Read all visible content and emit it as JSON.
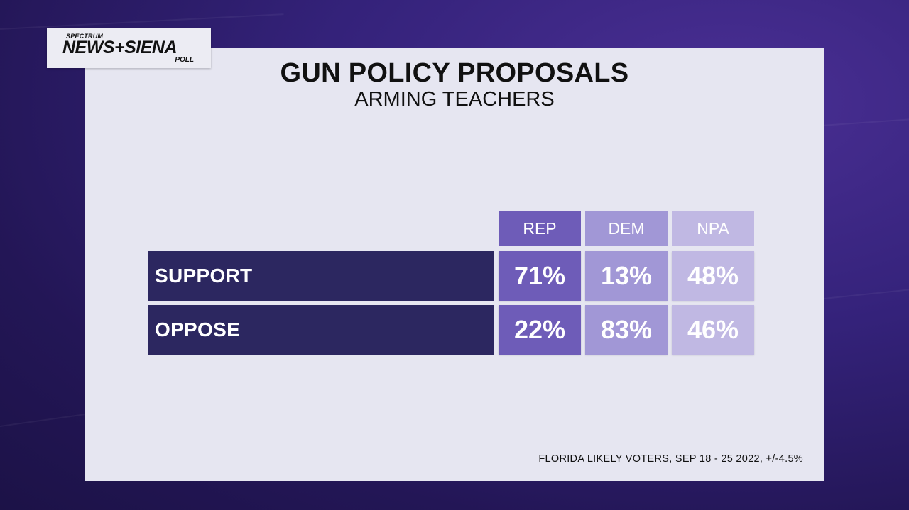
{
  "logo": {
    "top": "SPECTRUM",
    "main": "NEWS+SIENA",
    "sub": "POLL"
  },
  "title": "GUN POLICY PROPOSALS",
  "subtitle": "ARMING TEACHERS",
  "footer": "FLORIDA LIKELY VOTERS, SEP 18 - 25 2022, +/-4.5%",
  "colors": {
    "rep": "#6e5cb8",
    "dem": "#a197d6",
    "npa": "#c0b8e3",
    "row_label_bg": "#2c2760",
    "panel": "#e6e6f1"
  },
  "chart_data": {
    "type": "table",
    "title": "GUN POLICY PROPOSALS",
    "subtitle": "ARMING TEACHERS",
    "columns": [
      "REP",
      "DEM",
      "NPA"
    ],
    "rows": [
      {
        "label": "SUPPORT",
        "values": [
          "71%",
          "13%",
          "48%"
        ]
      },
      {
        "label": "OPPOSE",
        "values": [
          "22%",
          "83%",
          "46%"
        ]
      }
    ]
  }
}
